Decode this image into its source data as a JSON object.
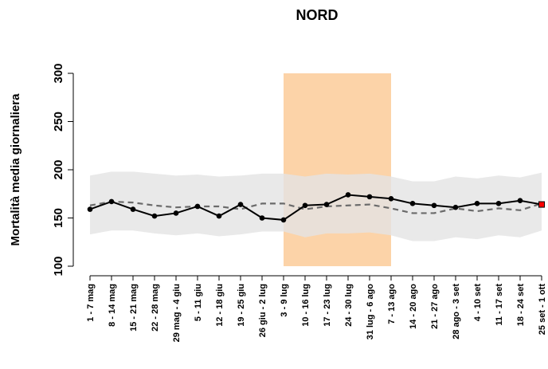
{
  "chart_data": {
    "type": "line",
    "title": "NORD",
    "y_label": "Mortalità media giornaliera",
    "categories": [
      "1 - 7 mag",
      "8 - 14 mag",
      "15 - 21 mag",
      "22 - 28 mag",
      "29 mag - 4 giu",
      "5 - 11 giu",
      "12 - 18 giu",
      "19 - 25 giu",
      "26 giu - 2 lug",
      "3 - 9 lug",
      "10 - 16 lug",
      "17 - 23 lug",
      "24 - 30 lug",
      "31 lug - 6 ago",
      "7 - 13 ago",
      "14 - 20 ago",
      "21 - 27 ago",
      "28 ago - 3 set",
      "4 - 10 set",
      "11 - 17 set",
      "18 - 24 set",
      "25 set - 1 ott"
    ],
    "series": [
      {
        "color": "#000000",
        "dashed": false,
        "markers": true,
        "last_marker_color": "#ff0000",
        "values": [
          159,
          167,
          159,
          152,
          155,
          162,
          152,
          164,
          150,
          148,
          163,
          164,
          174,
          172,
          170,
          165,
          163,
          161,
          165,
          165,
          168,
          164
        ]
      },
      {
        "color": "#6b6b6b",
        "dashed": true,
        "markers": false,
        "values": [
          163,
          167,
          166,
          163,
          161,
          162,
          162,
          159,
          165,
          165,
          159,
          162,
          163,
          164,
          160,
          155,
          155,
          160,
          157,
          160,
          158,
          165
        ]
      }
    ],
    "band": {
      "color": "#e3e3e3",
      "upper": [
        194,
        198,
        198,
        196,
        194,
        195,
        193,
        194,
        196,
        196,
        193,
        196,
        195,
        196,
        193,
        188,
        188,
        193,
        191,
        194,
        192,
        197
      ],
      "lower": [
        133,
        137,
        137,
        134,
        132,
        134,
        131,
        133,
        136,
        136,
        130,
        134,
        134,
        135,
        132,
        126,
        126,
        130,
        128,
        132,
        130,
        137
      ]
    },
    "highlight": {
      "start": "3 - 9 lug",
      "end": "7 - 13 ago",
      "color": "#fcd3a8"
    },
    "ylim": [
      100,
      300
    ],
    "yticks": [
      100,
      150,
      200,
      250,
      300
    ]
  }
}
